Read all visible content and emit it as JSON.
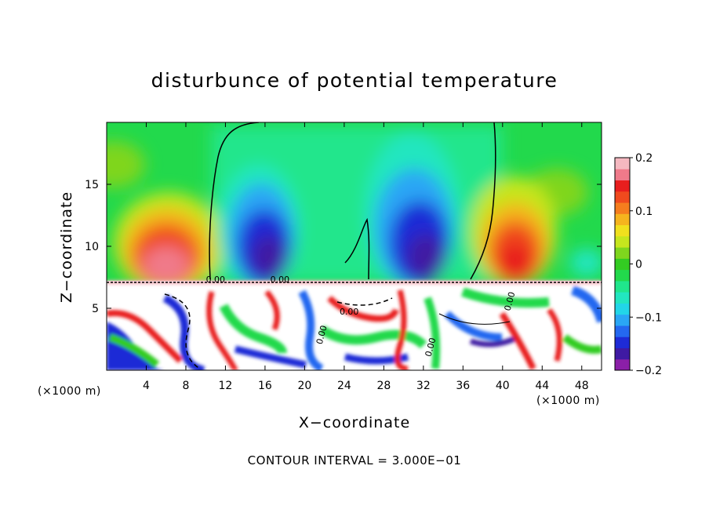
{
  "chart_data": {
    "type": "heatmap",
    "title": "disturbunce of potential temperature",
    "xlabel": "X−coordinate",
    "ylabel": "Z−coordinate",
    "x_unit": "(×1000 m)",
    "y_unit": "(×1000 m)",
    "xlim": [
      0,
      50
    ],
    "ylim": [
      0,
      20
    ],
    "x_ticks": [
      "4",
      "8",
      "12",
      "16",
      "20",
      "24",
      "28",
      "32",
      "36",
      "40",
      "44",
      "48"
    ],
    "y_ticks": [
      "5",
      "10",
      "15"
    ],
    "colorbar": {
      "range": [
        -0.2,
        0.2
      ],
      "tick_labels": [
        "0.2",
        "0.1",
        "0",
        "−0.1",
        "−0.2"
      ],
      "colors": [
        "#8b1fa8",
        "#3f1aa3",
        "#1e2bd6",
        "#2468f0",
        "#2aa6f5",
        "#22d6e8",
        "#22e6c0",
        "#20e68c",
        "#22d94c",
        "#33cc22",
        "#7fd61e",
        "#c6e61e",
        "#f0e01e",
        "#f5b41e",
        "#f57d1e",
        "#f04a1e",
        "#e81e1e",
        "#f07a8a",
        "#f5b8c0"
      ]
    },
    "contour_interval": "CONTOUR INTERVAL = 3.000E−01",
    "contour_labels": [
      "0.00",
      "0.00",
      "0.00",
      "0.00",
      "0.00",
      "0.00"
    ],
    "features": [
      {
        "kind": "warm-anomaly",
        "x": 7,
        "z": 9.5,
        "value": 0.2
      },
      {
        "kind": "cold-anomaly",
        "x": 17,
        "z": 9.5,
        "value": -0.2
      },
      {
        "kind": "cold-anomaly",
        "x": 33,
        "z": 9.5,
        "value": -0.2
      },
      {
        "kind": "warm-anomaly",
        "x": 41,
        "z": 10,
        "value": 0.15
      }
    ]
  }
}
